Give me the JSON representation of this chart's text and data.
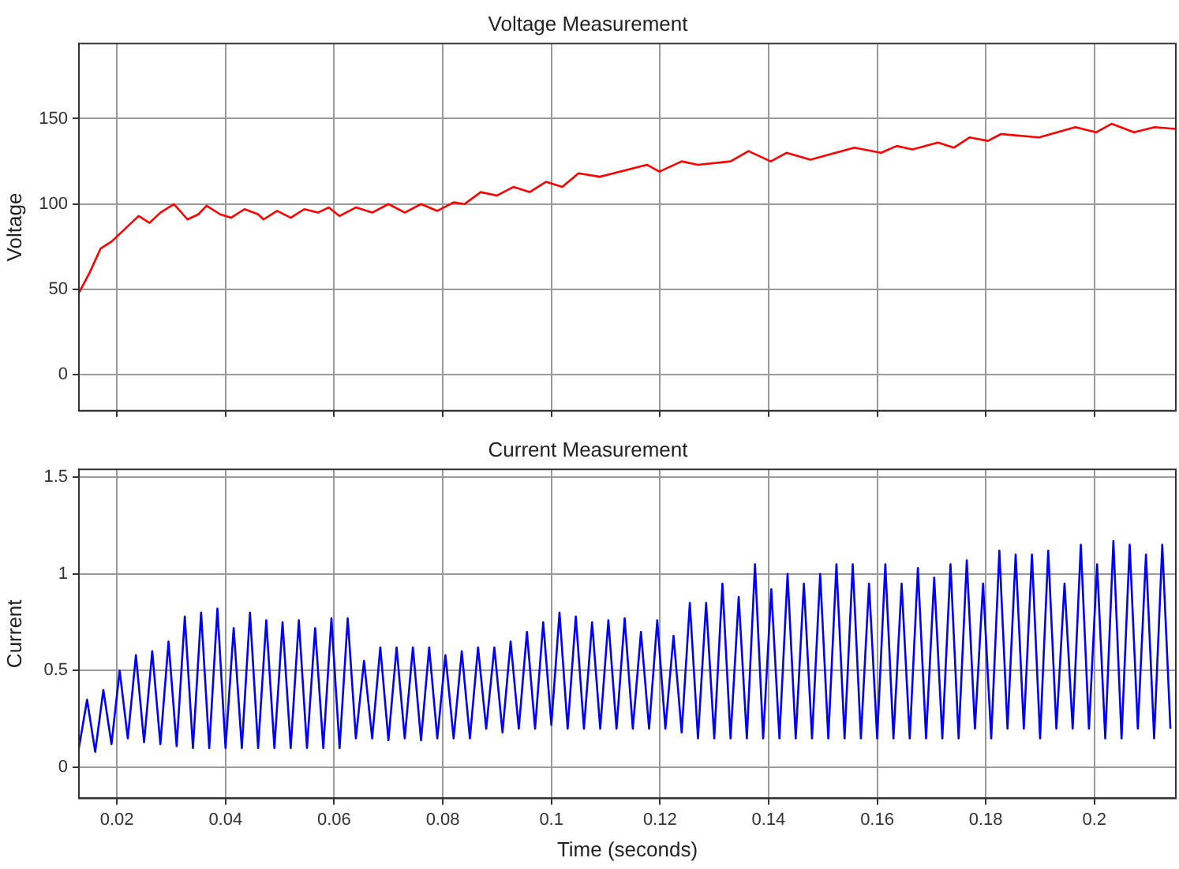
{
  "chart_data": [
    {
      "type": "line",
      "title": "Voltage Measurement",
      "ylabel": "Voltage",
      "xlim": [
        0.013,
        0.215
      ],
      "xticks": [
        0.02,
        0.04,
        0.06,
        0.08,
        0.1,
        0.12,
        0.14,
        0.16,
        0.18,
        0.2
      ],
      "ylim": [
        -21,
        194
      ],
      "yticks": [
        0,
        50,
        100,
        150
      ],
      "grid": true,
      "tick_labels": "y",
      "x": [
        0.013,
        0.015,
        0.017,
        0.019,
        0.021,
        0.024,
        0.026,
        0.028,
        0.0305,
        0.033,
        0.035,
        0.0365,
        0.039,
        0.041,
        0.0435,
        0.046,
        0.047,
        0.0495,
        0.052,
        0.0545,
        0.057,
        0.059,
        0.061,
        0.064,
        0.067,
        0.07,
        0.073,
        0.076,
        0.079,
        0.082,
        0.084,
        0.087,
        0.09,
        0.093,
        0.096,
        0.099,
        0.102,
        0.105,
        0.1089,
        0.1176,
        0.1199,
        0.124,
        0.127,
        0.133,
        0.1363,
        0.1404,
        0.1433,
        0.1477,
        0.1558,
        0.1607,
        0.1636,
        0.1665,
        0.1712,
        0.1741,
        0.177,
        0.1804,
        0.1828,
        0.1898,
        0.1965,
        0.2003,
        0.2032,
        0.2073,
        0.2111,
        0.215
      ],
      "series": [
        {
          "color": "#ff0000",
          "values": [
            48,
            60,
            74,
            78,
            84,
            93,
            89,
            95,
            100,
            91,
            94,
            99,
            94,
            92,
            97,
            94,
            91,
            96,
            92,
            97,
            95,
            98,
            93,
            98,
            95,
            100,
            95,
            100,
            96,
            101,
            100,
            107,
            105,
            110,
            107,
            113,
            110,
            118,
            116,
            123,
            119,
            125,
            123,
            125,
            131,
            125,
            130,
            126,
            133,
            130,
            134,
            132,
            136,
            133,
            139,
            137,
            141,
            139,
            145,
            142,
            147,
            142,
            145,
            144
          ]
        }
      ]
    },
    {
      "type": "line",
      "title": "Current Measurement",
      "xlabel": "Time (seconds)",
      "ylabel": "Current",
      "xlim": [
        0.013,
        0.215
      ],
      "xticks": [
        0.02,
        0.04,
        0.06,
        0.08,
        0.1,
        0.12,
        0.14,
        0.16,
        0.18,
        0.2
      ],
      "ylim": [
        -0.16,
        1.54
      ],
      "yticks": [
        0,
        0.5,
        1,
        1.5
      ],
      "grid": true,
      "x": [
        0.013,
        0.0145,
        0.016,
        0.0175,
        0.019,
        0.0205,
        0.022,
        0.0235,
        0.025,
        0.0265,
        0.028,
        0.0295,
        0.031,
        0.0325,
        0.034,
        0.0355,
        0.037,
        0.0385,
        0.04,
        0.0415,
        0.043,
        0.0445,
        0.046,
        0.0475,
        0.049,
        0.0505,
        0.052,
        0.0535,
        0.055,
        0.0565,
        0.058,
        0.0595,
        0.061,
        0.0625,
        0.064,
        0.0655,
        0.067,
        0.0685,
        0.07,
        0.0715,
        0.073,
        0.0745,
        0.076,
        0.0775,
        0.079,
        0.0805,
        0.082,
        0.0835,
        0.085,
        0.0865,
        0.088,
        0.0895,
        0.091,
        0.0925,
        0.094,
        0.0955,
        0.097,
        0.0985,
        0.1,
        0.1015,
        0.103,
        0.1045,
        0.106,
        0.1075,
        0.109,
        0.1105,
        0.112,
        0.1135,
        0.115,
        0.1165,
        0.118,
        0.1195,
        0.121,
        0.1225,
        0.124,
        0.1255,
        0.127,
        0.1285,
        0.13,
        0.1315,
        0.133,
        0.1345,
        0.136,
        0.1375,
        0.139,
        0.1405,
        0.142,
        0.1435,
        0.145,
        0.1465,
        0.148,
        0.1495,
        0.151,
        0.1525,
        0.154,
        0.1555,
        0.157,
        0.1585,
        0.16,
        0.1615,
        0.163,
        0.1645,
        0.166,
        0.1675,
        0.169,
        0.1705,
        0.172,
        0.1735,
        0.175,
        0.1765,
        0.178,
        0.1795,
        0.181,
        0.1825,
        0.184,
        0.1855,
        0.187,
        0.1885,
        0.19,
        0.1915,
        0.193,
        0.1945,
        0.196,
        0.1975,
        0.199,
        0.2005,
        0.202,
        0.2035,
        0.205,
        0.2065,
        0.208,
        0.2095,
        0.211,
        0.2125,
        0.214
      ],
      "series": [
        {
          "color": "#0000ff",
          "values": [
            0.1,
            0.35,
            0.08,
            0.4,
            0.12,
            0.5,
            0.15,
            0.58,
            0.13,
            0.6,
            0.12,
            0.65,
            0.11,
            0.78,
            0.1,
            0.8,
            0.1,
            0.82,
            0.1,
            0.72,
            0.1,
            0.8,
            0.1,
            0.76,
            0.1,
            0.75,
            0.1,
            0.76,
            0.1,
            0.72,
            0.1,
            0.77,
            0.1,
            0.77,
            0.15,
            0.55,
            0.15,
            0.62,
            0.14,
            0.62,
            0.15,
            0.62,
            0.14,
            0.62,
            0.15,
            0.58,
            0.15,
            0.6,
            0.15,
            0.62,
            0.2,
            0.62,
            0.18,
            0.65,
            0.2,
            0.7,
            0.2,
            0.75,
            0.22,
            0.8,
            0.2,
            0.78,
            0.2,
            0.75,
            0.2,
            0.76,
            0.2,
            0.77,
            0.2,
            0.7,
            0.2,
            0.76,
            0.2,
            0.68,
            0.18,
            0.85,
            0.15,
            0.85,
            0.15,
            0.95,
            0.15,
            0.88,
            0.15,
            1.05,
            0.15,
            0.92,
            0.15,
            1.0,
            0.15,
            0.95,
            0.15,
            1.0,
            0.15,
            1.05,
            0.15,
            1.05,
            0.15,
            0.95,
            0.15,
            1.05,
            0.15,
            0.95,
            0.15,
            1.03,
            0.15,
            0.98,
            0.15,
            1.05,
            0.15,
            1.07,
            0.2,
            0.95,
            0.15,
            1.12,
            0.2,
            1.1,
            0.2,
            1.1,
            0.15,
            1.12,
            0.2,
            0.95,
            0.2,
            1.15,
            0.2,
            1.05,
            0.15,
            1.17,
            0.15,
            1.15,
            0.2,
            1.1,
            0.15,
            1.15,
            0.2
          ]
        }
      ]
    }
  ]
}
